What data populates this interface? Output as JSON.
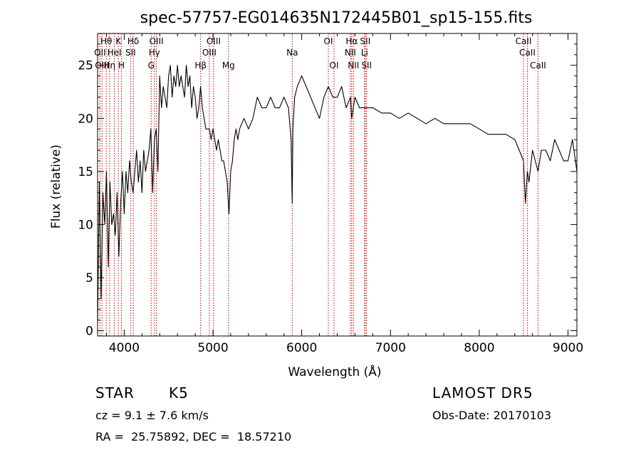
{
  "chart_data": {
    "type": "line",
    "title": "spec-57757-EG014635N172445B01_sp15-155.fits",
    "xlabel": "Wavelength (Å)",
    "ylabel": "Flux (relative)",
    "xlim": [
      3700,
      9100
    ],
    "ylim": [
      -0.5,
      28
    ],
    "xticks": [
      4000,
      5000,
      6000,
      7000,
      8000,
      9000
    ],
    "yticks": [
      0,
      5,
      10,
      15,
      20,
      25
    ],
    "grid": false,
    "series": [
      {
        "x": [
          3700,
          3720,
          3740,
          3760,
          3780,
          3800,
          3820,
          3840,
          3860,
          3880,
          3900,
          3920,
          3940,
          3960,
          3980,
          4000,
          4020,
          4040,
          4060,
          4080,
          4100,
          4120,
          4140,
          4160,
          4180,
          4200,
          4220,
          4240,
          4260,
          4280,
          4300,
          4320,
          4340,
          4360,
          4380,
          4400,
          4420,
          4440,
          4460,
          4480,
          4500,
          4520,
          4540,
          4560,
          4580,
          4600,
          4620,
          4640,
          4660,
          4680,
          4700,
          4720,
          4740,
          4760,
          4780,
          4800,
          4820,
          4840,
          4860,
          4880,
          4900,
          4920,
          4940,
          4960,
          4980,
          5000,
          5020,
          5040,
          5060,
          5080,
          5100,
          5120,
          5140,
          5160,
          5180,
          5200,
          5220,
          5240,
          5260,
          5280,
          5300,
          5350,
          5400,
          5450,
          5500,
          5550,
          5600,
          5650,
          5700,
          5750,
          5800,
          5850,
          5880,
          5893,
          5900,
          5920,
          5950,
          6000,
          6050,
          6100,
          6150,
          6200,
          6250,
          6300,
          6350,
          6400,
          6450,
          6500,
          6550,
          6563,
          6600,
          6650,
          6700,
          6750,
          6800,
          6900,
          7000,
          7100,
          7200,
          7300,
          7400,
          7500,
          7600,
          7700,
          7800,
          7900,
          8000,
          8100,
          8200,
          8300,
          8400,
          8450,
          8498,
          8520,
          8542,
          8560,
          8600,
          8662,
          8700,
          8750,
          8800,
          8850,
          8900,
          8950,
          9000,
          9050,
          9100
        ],
        "y": [
          0.5,
          14,
          3,
          13,
          10,
          15,
          6,
          14,
          10,
          11,
          9,
          13,
          7,
          12,
          15,
          11,
          15,
          13,
          16,
          14,
          13,
          15,
          17,
          14,
          16,
          13,
          17,
          15,
          16,
          17,
          19,
          13,
          18,
          19,
          15,
          24,
          21,
          23,
          22,
          21,
          24,
          25,
          22,
          24,
          23,
          25,
          23,
          24,
          23,
          22,
          25,
          23,
          24,
          21,
          23,
          22,
          20,
          21,
          23,
          21,
          20,
          19,
          19,
          19,
          18,
          19,
          18,
          17,
          18,
          17,
          16,
          16,
          15,
          14,
          11,
          15,
          16,
          18,
          19,
          18,
          19,
          20,
          19,
          20,
          22,
          21,
          21,
          22,
          21,
          21,
          22,
          21,
          18,
          12,
          19,
          22,
          23,
          24,
          23,
          22,
          21,
          20,
          22,
          23,
          22,
          22,
          23,
          21,
          22,
          20,
          22,
          21,
          21,
          21,
          21,
          20.5,
          20.5,
          20,
          20.5,
          20,
          19.5,
          20,
          19.5,
          19.5,
          19.5,
          19.5,
          19,
          18.5,
          18.5,
          18.5,
          18,
          17,
          16,
          12,
          15,
          14,
          17,
          15,
          17,
          17,
          16,
          18,
          17,
          16,
          16,
          18,
          15
        ]
      }
    ],
    "line_labels": [
      {
        "text": "Hθ",
        "x": 3798,
        "row": 1
      },
      {
        "text": "K",
        "x": 3934,
        "row": 1
      },
      {
        "text": "Hδ",
        "x": 4102,
        "row": 1
      },
      {
        "text": "OIII",
        "x": 4363,
        "row": 1
      },
      {
        "text": "OIII",
        "x": 5007,
        "row": 1
      },
      {
        "text": "OI",
        "x": 6300,
        "row": 1
      },
      {
        "text": "Hα",
        "x": 6563,
        "row": 1
      },
      {
        "text": "SII",
        "x": 6716,
        "row": 1
      },
      {
        "text": "CaII",
        "x": 8498,
        "row": 1
      },
      {
        "text": "OII",
        "x": 3727,
        "row": 2
      },
      {
        "text": "HeI",
        "x": 3889,
        "row": 2
      },
      {
        "text": "SII",
        "x": 4072,
        "row": 2
      },
      {
        "text": "Hγ",
        "x": 4340,
        "row": 2
      },
      {
        "text": "OIII",
        "x": 4959,
        "row": 2
      },
      {
        "text": "Na",
        "x": 5893,
        "row": 2
      },
      {
        "text": "NII",
        "x": 6548,
        "row": 2
      },
      {
        "text": "Li",
        "x": 6708,
        "row": 2
      },
      {
        "text": "CaII",
        "x": 8542,
        "row": 2
      },
      {
        "text": "OIII",
        "x": 3750,
        "row": 3
      },
      {
        "text": "Hη",
        "x": 3835,
        "row": 3
      },
      {
        "text": "H",
        "x": 3969,
        "row": 3
      },
      {
        "text": "G",
        "x": 4304,
        "row": 3
      },
      {
        "text": "Hβ",
        "x": 4861,
        "row": 3
      },
      {
        "text": "Mg",
        "x": 5175,
        "row": 3
      },
      {
        "text": "OI",
        "x": 6364,
        "row": 3
      },
      {
        "text": "NII",
        "x": 6583,
        "row": 3
      },
      {
        "text": "SII",
        "x": 6731,
        "row": 3
      },
      {
        "text": "CaII",
        "x": 8662,
        "row": 3
      }
    ],
    "line_marks": [
      3727,
      3750,
      3798,
      3835,
      3889,
      3934,
      3969,
      4072,
      4102,
      4304,
      4340,
      4363,
      4861,
      4959,
      5007,
      5175,
      5893,
      6300,
      6364,
      6548,
      6563,
      6583,
      6708,
      6716,
      6731,
      8498,
      8542,
      8662
    ]
  },
  "info": {
    "class_label": "STAR",
    "subclass": "K5",
    "survey": "LAMOST DR5",
    "cz_line": "cz = 9.1 ± 7.6 km/s",
    "obs_date": "Obs-Date: 20170103",
    "radec": "RA =  25.75892, DEC =  18.57210"
  },
  "colors": {
    "axes": "#000000",
    "spectrum": "#000000",
    "line_mark": "#cc0000"
  }
}
